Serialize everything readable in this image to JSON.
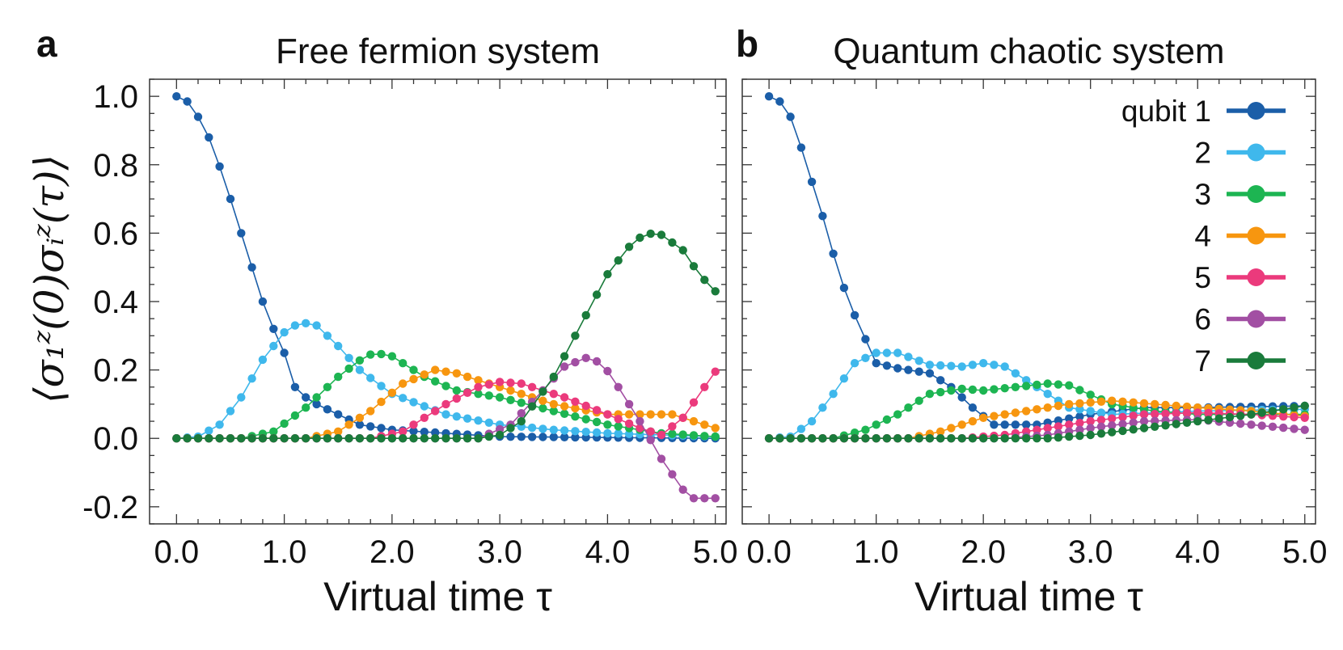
{
  "figure": {
    "ylabel": "⟨σ₁ᶻ(0)σᵢᶻ(τ)⟩",
    "legend_prefix": "qubit",
    "series_names": [
      "1",
      "2",
      "3",
      "4",
      "5",
      "6",
      "7"
    ],
    "series_colors": [
      "#1b5ea8",
      "#3fb8ec",
      "#1db552",
      "#f7960f",
      "#eb3a7c",
      "#a24fa3",
      "#1a7b3b"
    ]
  },
  "chart_data": [
    {
      "type": "line",
      "letter": "a",
      "title": "Free fermion system",
      "xlabel": "Virtual time τ",
      "ylabel": "⟨σ₁ᶻ(0)σᵢᶻ(τ)⟩",
      "xlim": [
        -0.25,
        5.1
      ],
      "ylim": [
        -0.25,
        1.05
      ],
      "xticks": [
        "0.0",
        "1.0",
        "2.0",
        "3.0",
        "4.0",
        "5.0"
      ],
      "yticks": [
        "-0.2",
        "0.0",
        "0.2",
        "0.4",
        "0.6",
        "0.8",
        "1.0"
      ],
      "x_range": [
        0,
        5.0
      ],
      "n_points": 51,
      "series": [
        {
          "name": "1",
          "color": "#1b5ea8",
          "knots": [
            [
              0,
              1.0
            ],
            [
              0.1,
              0.985
            ],
            [
              0.2,
              0.94
            ],
            [
              0.3,
              0.88
            ],
            [
              0.4,
              0.795
            ],
            [
              0.5,
              0.7
            ],
            [
              0.6,
              0.6
            ],
            [
              0.7,
              0.5
            ],
            [
              0.8,
              0.4
            ],
            [
              0.9,
              0.32
            ],
            [
              1.0,
              0.25
            ],
            [
              1.1,
              0.15
            ],
            [
              1.2,
              0.12
            ],
            [
              1.3,
              0.1
            ],
            [
              1.5,
              0.07
            ],
            [
              1.7,
              0.04
            ],
            [
              2.0,
              0.025
            ],
            [
              2.5,
              0.015
            ],
            [
              3.0,
              0.005
            ],
            [
              5.0,
              0.0
            ]
          ]
        },
        {
          "name": "2",
          "color": "#3fb8ec",
          "knots": [
            [
              0,
              0
            ],
            [
              0.2,
              0.005
            ],
            [
              0.4,
              0.04
            ],
            [
              0.6,
              0.12
            ],
            [
              0.8,
              0.23
            ],
            [
              1.0,
              0.31
            ],
            [
              1.15,
              0.34
            ],
            [
              1.3,
              0.33
            ],
            [
              1.5,
              0.27
            ],
            [
              1.7,
              0.2
            ],
            [
              2.0,
              0.13
            ],
            [
              2.5,
              0.07
            ],
            [
              3.0,
              0.04
            ],
            [
              3.5,
              0.025
            ],
            [
              4.0,
              0.015
            ],
            [
              5.0,
              0.005
            ]
          ]
        },
        {
          "name": "3",
          "color": "#1db552",
          "knots": [
            [
              0,
              0
            ],
            [
              0.6,
              0.0
            ],
            [
              0.9,
              0.02
            ],
            [
              1.2,
              0.09
            ],
            [
              1.5,
              0.18
            ],
            [
              1.75,
              0.24
            ],
            [
              1.85,
              0.25
            ],
            [
              2.0,
              0.24
            ],
            [
              2.3,
              0.18
            ],
            [
              2.6,
              0.14
            ],
            [
              3.0,
              0.12
            ],
            [
              3.5,
              0.08
            ],
            [
              4.0,
              0.04
            ],
            [
              4.5,
              0.015
            ],
            [
              5.0,
              0.005
            ]
          ]
        },
        {
          "name": "4",
          "color": "#f7960f",
          "knots": [
            [
              0,
              0
            ],
            [
              1.2,
              0.0
            ],
            [
              1.5,
              0.02
            ],
            [
              1.8,
              0.08
            ],
            [
              2.1,
              0.16
            ],
            [
              2.4,
              0.2
            ],
            [
              2.6,
              0.19
            ],
            [
              3.0,
              0.15
            ],
            [
              3.5,
              0.1
            ],
            [
              4.0,
              0.07
            ],
            [
              4.6,
              0.07
            ],
            [
              5.0,
              0.03
            ]
          ]
        },
        {
          "name": "5",
          "color": "#eb3a7c",
          "knots": [
            [
              0,
              0
            ],
            [
              1.8,
              0.0
            ],
            [
              2.1,
              0.02
            ],
            [
              2.5,
              0.1
            ],
            [
              2.8,
              0.15
            ],
            [
              3.0,
              0.165
            ],
            [
              3.2,
              0.16
            ],
            [
              3.6,
              0.12
            ],
            [
              4.0,
              0.07
            ],
            [
              4.3,
              0.03
            ],
            [
              4.5,
              0.01
            ],
            [
              4.7,
              0.06
            ],
            [
              4.9,
              0.15
            ],
            [
              5.0,
              0.195
            ]
          ]
        },
        {
          "name": "6",
          "color": "#a24fa3",
          "knots": [
            [
              0,
              0
            ],
            [
              2.8,
              0.0
            ],
            [
              3.1,
              0.04
            ],
            [
              3.4,
              0.14
            ],
            [
              3.6,
              0.21
            ],
            [
              3.8,
              0.235
            ],
            [
              3.95,
              0.22
            ],
            [
              4.1,
              0.15
            ],
            [
              4.3,
              0.05
            ],
            [
              4.5,
              -0.06
            ],
            [
              4.7,
              -0.15
            ],
            [
              4.8,
              -0.175
            ],
            [
              5.0,
              -0.175
            ]
          ]
        },
        {
          "name": "7",
          "color": "#1a7b3b",
          "knots": [
            [
              0,
              0
            ],
            [
              2.8,
              0.0
            ],
            [
              3.0,
              0.01
            ],
            [
              3.2,
              0.05
            ],
            [
              3.5,
              0.18
            ],
            [
              3.8,
              0.36
            ],
            [
              4.0,
              0.48
            ],
            [
              4.2,
              0.56
            ],
            [
              4.35,
              0.6
            ],
            [
              4.5,
              0.595
            ],
            [
              4.7,
              0.55
            ],
            [
              4.85,
              0.48
            ],
            [
              5.0,
              0.43
            ]
          ]
        }
      ]
    },
    {
      "type": "line",
      "letter": "b",
      "title": "Quantum chaotic system",
      "xlabel": "Virtual time τ",
      "ylabel": "",
      "xlim": [
        -0.25,
        5.1
      ],
      "ylim": [
        -0.25,
        1.05
      ],
      "xticks": [
        "0.0",
        "1.0",
        "2.0",
        "3.0",
        "4.0",
        "5.0"
      ],
      "yticks": [],
      "x_range": [
        0,
        5.0
      ],
      "n_points": 51,
      "series": [
        {
          "name": "1",
          "color": "#1b5ea8",
          "knots": [
            [
              0,
              1.0
            ],
            [
              0.1,
              0.985
            ],
            [
              0.2,
              0.94
            ],
            [
              0.3,
              0.85
            ],
            [
              0.4,
              0.75
            ],
            [
              0.5,
              0.65
            ],
            [
              0.6,
              0.54
            ],
            [
              0.7,
              0.44
            ],
            [
              0.8,
              0.36
            ],
            [
              0.9,
              0.29
            ],
            [
              1.0,
              0.22
            ],
            [
              1.2,
              0.205
            ],
            [
              1.5,
              0.19
            ],
            [
              1.7,
              0.15
            ],
            [
              1.9,
              0.09
            ],
            [
              2.1,
              0.04
            ],
            [
              2.5,
              0.04
            ],
            [
              3.0,
              0.07
            ],
            [
              3.5,
              0.09
            ],
            [
              4.0,
              0.09
            ],
            [
              5.0,
              0.095
            ]
          ]
        },
        {
          "name": "2",
          "color": "#3fb8ec",
          "knots": [
            [
              0,
              0
            ],
            [
              0.2,
              0.005
            ],
            [
              0.4,
              0.05
            ],
            [
              0.6,
              0.13
            ],
            [
              0.8,
              0.22
            ],
            [
              1.0,
              0.25
            ],
            [
              1.2,
              0.25
            ],
            [
              1.5,
              0.215
            ],
            [
              1.8,
              0.21
            ],
            [
              2.0,
              0.22
            ],
            [
              2.2,
              0.21
            ],
            [
              2.5,
              0.15
            ],
            [
              2.8,
              0.09
            ],
            [
              3.2,
              0.07
            ],
            [
              4.0,
              0.08
            ],
            [
              5.0,
              0.085
            ]
          ]
        },
        {
          "name": "3",
          "color": "#1db552",
          "knots": [
            [
              0,
              0
            ],
            [
              0.6,
              0.0
            ],
            [
              0.9,
              0.025
            ],
            [
              1.2,
              0.07
            ],
            [
              1.5,
              0.13
            ],
            [
              1.8,
              0.145
            ],
            [
              2.0,
              0.14
            ],
            [
              2.3,
              0.15
            ],
            [
              2.6,
              0.16
            ],
            [
              2.8,
              0.155
            ],
            [
              3.2,
              0.1
            ],
            [
              3.6,
              0.08
            ],
            [
              4.0,
              0.07
            ],
            [
              5.0,
              0.07
            ]
          ]
        },
        {
          "name": "4",
          "color": "#f7960f",
          "knots": [
            [
              0,
              0
            ],
            [
              1.3,
              0.0
            ],
            [
              1.6,
              0.02
            ],
            [
              2.0,
              0.06
            ],
            [
              2.4,
              0.08
            ],
            [
              2.8,
              0.1
            ],
            [
              3.2,
              0.11
            ],
            [
              3.6,
              0.1
            ],
            [
              4.0,
              0.09
            ],
            [
              4.5,
              0.08
            ],
            [
              5.0,
              0.065
            ]
          ]
        },
        {
          "name": "5",
          "color": "#eb3a7c",
          "knots": [
            [
              0,
              0
            ],
            [
              1.8,
              0.0
            ],
            [
              2.2,
              0.01
            ],
            [
              2.6,
              0.03
            ],
            [
              3.0,
              0.05
            ],
            [
              3.5,
              0.07
            ],
            [
              4.0,
              0.075
            ],
            [
              4.5,
              0.07
            ],
            [
              5.0,
              0.06
            ]
          ]
        },
        {
          "name": "6",
          "color": "#a24fa3",
          "knots": [
            [
              0,
              0
            ],
            [
              2.2,
              0.0
            ],
            [
              2.6,
              0.01
            ],
            [
              3.0,
              0.03
            ],
            [
              3.5,
              0.05
            ],
            [
              4.0,
              0.055
            ],
            [
              4.5,
              0.04
            ],
            [
              5.0,
              0.025
            ]
          ]
        },
        {
          "name": "7",
          "color": "#1a7b3b",
          "knots": [
            [
              0,
              0
            ],
            [
              2.6,
              0.0
            ],
            [
              3.0,
              0.01
            ],
            [
              3.5,
              0.03
            ],
            [
              4.0,
              0.05
            ],
            [
              4.5,
              0.07
            ],
            [
              5.0,
              0.095
            ]
          ]
        }
      ]
    }
  ]
}
